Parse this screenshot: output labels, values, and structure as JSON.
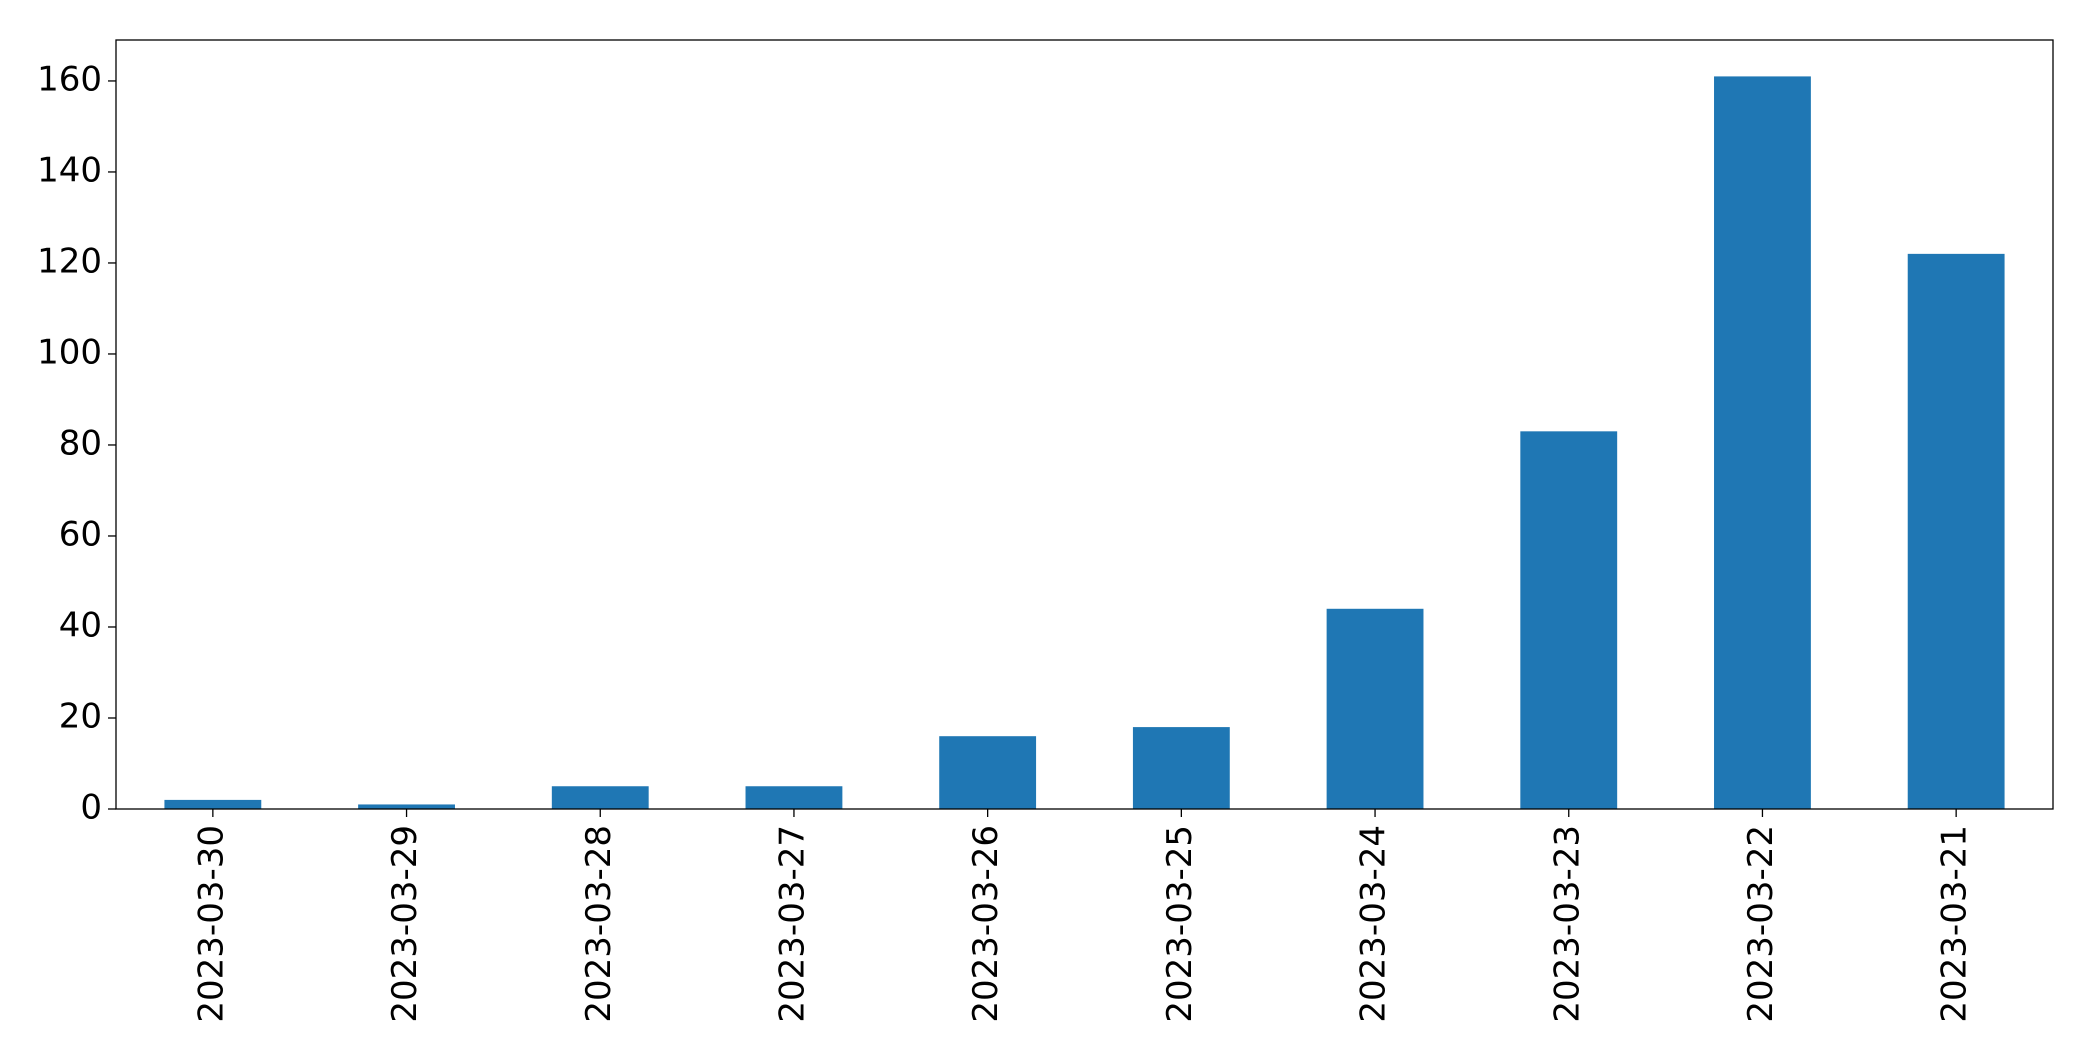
{
  "chart_data": {
    "type": "bar",
    "categories": [
      "2023-03-30",
      "2023-03-29",
      "2023-03-28",
      "2023-03-27",
      "2023-03-26",
      "2023-03-25",
      "2023-03-24",
      "2023-03-23",
      "2023-03-22",
      "2023-03-21"
    ],
    "values": [
      2,
      1,
      5,
      5,
      16,
      18,
      44,
      83,
      161,
      122
    ],
    "color": "#1f77b4",
    "ylim": [
      0,
      169
    ],
    "yticks": [
      0,
      20,
      40,
      60,
      80,
      100,
      120,
      140,
      160
    ],
    "grid": false
  }
}
